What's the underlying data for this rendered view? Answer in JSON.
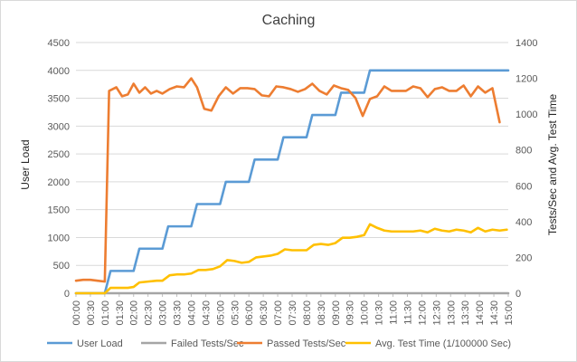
{
  "chart_data": {
    "type": "line",
    "title": "Caching",
    "ylabel": "User Load",
    "y2label": "Tests/Sec and Avg. Test Time",
    "ylim": [
      0,
      4500
    ],
    "y2lim": [
      0,
      1400
    ],
    "yticks": [
      0,
      500,
      1000,
      1500,
      2000,
      2500,
      3000,
      3500,
      4000,
      4500
    ],
    "y2ticks": [
      0,
      200,
      400,
      600,
      800,
      1000,
      1200,
      1400
    ],
    "xlabels": [
      "00:00",
      "00:30",
      "01:00",
      "01:30",
      "02:00",
      "02:30",
      "03:00",
      "03:30",
      "04:00",
      "04:30",
      "05:00",
      "05:30",
      "06:00",
      "06:30",
      "07:00",
      "07:30",
      "08:00",
      "08:30",
      "09:00",
      "09:30",
      "10:00",
      "10:30",
      "11:00",
      "11:30",
      "12:00",
      "12:30",
      "13:00",
      "13:30",
      "14:00",
      "14:30",
      "15:00"
    ],
    "xlim": [
      0,
      15
    ],
    "grid": true,
    "legend_position": "bottom",
    "series": [
      {
        "name": "User Load",
        "axis": "left",
        "color": "#5b9bd5",
        "points": [
          [
            0,
            0
          ],
          [
            1.0,
            0
          ],
          [
            1.2,
            400
          ],
          [
            2.0,
            400
          ],
          [
            2.2,
            800
          ],
          [
            3.0,
            800
          ],
          [
            3.2,
            1200
          ],
          [
            4.0,
            1200
          ],
          [
            4.2,
            1600
          ],
          [
            5.0,
            1600
          ],
          [
            5.2,
            2000
          ],
          [
            6.0,
            2000
          ],
          [
            6.2,
            2400
          ],
          [
            7.0,
            2400
          ],
          [
            7.2,
            2800
          ],
          [
            8.0,
            2800
          ],
          [
            8.2,
            3200
          ],
          [
            9.0,
            3200
          ],
          [
            9.2,
            3600
          ],
          [
            10.0,
            3600
          ],
          [
            10.2,
            4000
          ],
          [
            15.0,
            4000
          ]
        ]
      },
      {
        "name": "Failed Tests/Sec",
        "axis": "right",
        "color": "#a5a5a5",
        "points": [
          [
            0,
            0
          ],
          [
            15.0,
            0
          ]
        ]
      },
      {
        "name": "Passed Tests/Sec",
        "axis": "right",
        "color": "#ed7d31",
        "points": [
          [
            0,
            70
          ],
          [
            0.25,
            75
          ],
          [
            0.5,
            75
          ],
          [
            0.75,
            70
          ],
          [
            1.0,
            65
          ],
          [
            1.15,
            1130
          ],
          [
            1.4,
            1150
          ],
          [
            1.6,
            1100
          ],
          [
            1.8,
            1110
          ],
          [
            2.0,
            1170
          ],
          [
            2.2,
            1120
          ],
          [
            2.4,
            1150
          ],
          [
            2.6,
            1115
          ],
          [
            2.8,
            1130
          ],
          [
            3.0,
            1115
          ],
          [
            3.25,
            1140
          ],
          [
            3.5,
            1155
          ],
          [
            3.75,
            1150
          ],
          [
            4.0,
            1200
          ],
          [
            4.2,
            1150
          ],
          [
            4.45,
            1030
          ],
          [
            4.7,
            1020
          ],
          [
            4.95,
            1100
          ],
          [
            5.2,
            1150
          ],
          [
            5.45,
            1115
          ],
          [
            5.7,
            1145
          ],
          [
            5.95,
            1145
          ],
          [
            6.2,
            1140
          ],
          [
            6.45,
            1105
          ],
          [
            6.7,
            1100
          ],
          [
            6.95,
            1155
          ],
          [
            7.2,
            1150
          ],
          [
            7.45,
            1140
          ],
          [
            7.7,
            1125
          ],
          [
            7.95,
            1140
          ],
          [
            8.2,
            1170
          ],
          [
            8.45,
            1130
          ],
          [
            8.7,
            1110
          ],
          [
            8.95,
            1160
          ],
          [
            9.2,
            1145
          ],
          [
            9.45,
            1135
          ],
          [
            9.7,
            1090
          ],
          [
            9.95,
            990
          ],
          [
            10.2,
            1085
          ],
          [
            10.45,
            1100
          ],
          [
            10.7,
            1155
          ],
          [
            10.95,
            1130
          ],
          [
            11.2,
            1130
          ],
          [
            11.45,
            1130
          ],
          [
            11.7,
            1155
          ],
          [
            11.95,
            1145
          ],
          [
            12.2,
            1095
          ],
          [
            12.45,
            1140
          ],
          [
            12.7,
            1150
          ],
          [
            12.95,
            1130
          ],
          [
            13.2,
            1130
          ],
          [
            13.45,
            1160
          ],
          [
            13.7,
            1100
          ],
          [
            13.95,
            1155
          ],
          [
            14.2,
            1120
          ],
          [
            14.45,
            1145
          ],
          [
            14.7,
            955
          ]
        ]
      },
      {
        "name": "Avg. Test Time (1/100000 Sec)",
        "axis": "right",
        "color": "#ffc000",
        "points": [
          [
            0,
            0
          ],
          [
            1.0,
            0
          ],
          [
            1.2,
            30
          ],
          [
            1.5,
            30
          ],
          [
            1.8,
            30
          ],
          [
            2.0,
            35
          ],
          [
            2.2,
            60
          ],
          [
            2.5,
            65
          ],
          [
            2.8,
            70
          ],
          [
            3.0,
            70
          ],
          [
            3.25,
            100
          ],
          [
            3.5,
            105
          ],
          [
            3.75,
            105
          ],
          [
            4.0,
            110
          ],
          [
            4.25,
            130
          ],
          [
            4.5,
            130
          ],
          [
            4.75,
            135
          ],
          [
            5.0,
            150
          ],
          [
            5.25,
            185
          ],
          [
            5.5,
            180
          ],
          [
            5.75,
            170
          ],
          [
            6.0,
            175
          ],
          [
            6.25,
            200
          ],
          [
            6.5,
            205
          ],
          [
            6.75,
            210
          ],
          [
            7.0,
            220
          ],
          [
            7.25,
            245
          ],
          [
            7.5,
            240
          ],
          [
            7.75,
            240
          ],
          [
            8.0,
            240
          ],
          [
            8.25,
            270
          ],
          [
            8.5,
            275
          ],
          [
            8.75,
            270
          ],
          [
            9.0,
            280
          ],
          [
            9.25,
            310
          ],
          [
            9.5,
            310
          ],
          [
            9.75,
            315
          ],
          [
            10.0,
            325
          ],
          [
            10.2,
            385
          ],
          [
            10.45,
            365
          ],
          [
            10.7,
            350
          ],
          [
            10.95,
            345
          ],
          [
            11.2,
            345
          ],
          [
            11.45,
            345
          ],
          [
            11.7,
            345
          ],
          [
            11.95,
            350
          ],
          [
            12.2,
            340
          ],
          [
            12.45,
            360
          ],
          [
            12.7,
            350
          ],
          [
            12.95,
            345
          ],
          [
            13.2,
            355
          ],
          [
            13.45,
            350
          ],
          [
            13.7,
            340
          ],
          [
            13.95,
            365
          ],
          [
            14.2,
            345
          ],
          [
            14.45,
            355
          ],
          [
            14.7,
            350
          ],
          [
            14.95,
            355
          ]
        ]
      }
    ]
  }
}
